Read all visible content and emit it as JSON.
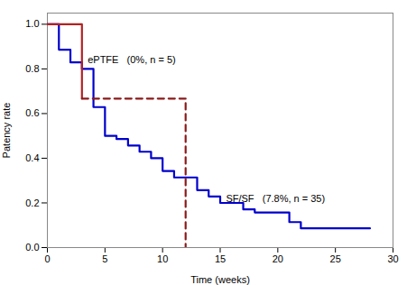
{
  "chart_data": {
    "type": "line",
    "xlabel": "Time (weeks)",
    "ylabel": "Patency rate",
    "xlim": [
      0,
      30
    ],
    "ylim": [
      0.0,
      1.05
    ],
    "xticks": [
      0,
      5,
      10,
      15,
      20,
      25,
      30
    ],
    "yticks": [
      {
        "value": 0.0,
        "label": "0.0"
      },
      0.2,
      0.4,
      0.6,
      0.8,
      {
        "value": 1.0,
        "label": "1.0"
      }
    ],
    "series": [
      {
        "type": "step",
        "color": "#0000cd",
        "line_style": "solid",
        "x": [
          0,
          1,
          2,
          3,
          4,
          5,
          6,
          7,
          8,
          9,
          10,
          11,
          12,
          13,
          14,
          15,
          17,
          18,
          19,
          21,
          22,
          25,
          28
        ],
        "values": [
          1.0,
          0.886,
          0.829,
          0.8,
          0.629,
          0.5,
          0.486,
          0.457,
          0.429,
          0.4,
          0.343,
          0.314,
          0.314,
          0.257,
          0.229,
          0.2,
          0.171,
          0.157,
          0.157,
          0.114,
          0.086,
          0.086,
          0.086
        ]
      },
      {
        "type": "line",
        "color": "#b22222",
        "line_style": "solid",
        "x": [
          0,
          3,
          3
        ],
        "values": [
          1.0,
          1.0,
          0.667
        ]
      },
      {
        "type": "line",
        "color": "#8b1a1a",
        "line_style": "dashed",
        "x": [
          3,
          12,
          12
        ],
        "values": [
          0.667,
          0.667,
          0.0
        ]
      }
    ],
    "annotations": [
      {
        "text": "ePTFE   (0%, n = 5)",
        "x": 3.5,
        "y": 0.84
      },
      {
        "text": "SF/SF   (7.8%, n = 35)",
        "x": 15.5,
        "y": 0.22
      }
    ]
  }
}
